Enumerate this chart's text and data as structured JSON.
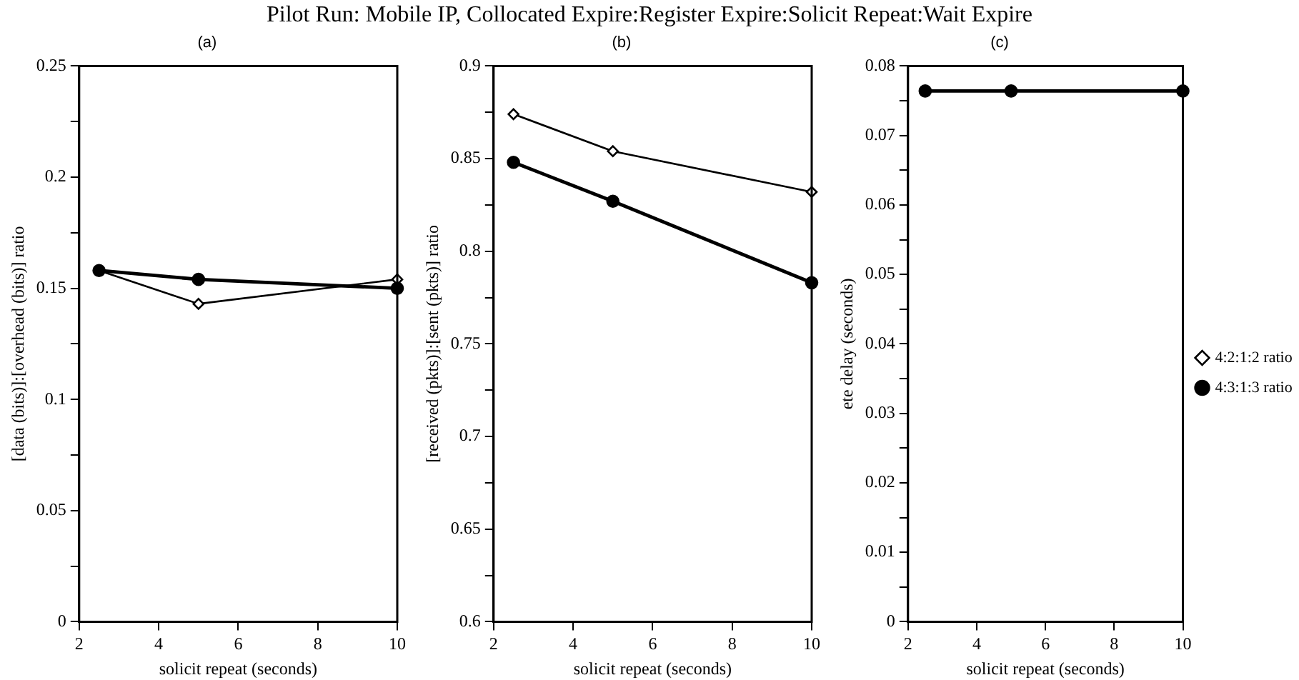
{
  "chart_data": [
    {
      "type": "line",
      "title": "Pilot Run: Mobile IP, Collocated Expire:Register Expire:Solicit Repeat:Wait Expire",
      "subtitle": "(a)",
      "xlabel": "solicit repeat (seconds)",
      "ylabel": "[data (bits)]:[overhead (bits)] ratio",
      "x": [
        2.5,
        5,
        10
      ],
      "series": [
        {
          "color": "#000000",
          "marker": "diamond",
          "values": [
            0.158,
            0.143,
            0.154
          ]
        },
        {
          "color": "#000000",
          "marker": "circle",
          "values": [
            0.158,
            0.154,
            0.15
          ]
        }
      ],
      "xlim": [
        2,
        10
      ],
      "xticks": [
        2,
        4,
        6,
        8,
        10
      ],
      "ylim": [
        0,
        0.25
      ],
      "yticks": [
        0,
        {
          "value": 0.025,
          "label": null
        },
        0.05,
        {
          "value": 0.075,
          "label": null
        },
        0.1,
        {
          "value": 0.125,
          "label": null
        },
        0.15,
        {
          "value": 0.175,
          "label": null
        },
        0.2,
        {
          "value": 0.225,
          "label": null
        },
        0.25
      ],
      "grid": false,
      "legend": false
    },
    {
      "type": "line",
      "subtitle": "(b)",
      "xlabel": "solicit repeat (seconds)",
      "ylabel": "[received (pkts)]:[sent (pkts)] ratio",
      "x": [
        2.5,
        5,
        10
      ],
      "series": [
        {
          "color": "#000000",
          "marker": "diamond",
          "values": [
            0.874,
            0.854,
            0.832
          ]
        },
        {
          "color": "#000000",
          "marker": "circle",
          "values": [
            0.848,
            0.827,
            0.783
          ]
        }
      ],
      "xlim": [
        2,
        10
      ],
      "xticks": [
        2,
        4,
        6,
        8,
        10
      ],
      "ylim": [
        0.6,
        0.9
      ],
      "yticks": [
        0.6,
        {
          "value": 0.625,
          "label": null
        },
        0.65,
        {
          "value": 0.675,
          "label": null
        },
        0.7,
        {
          "value": 0.725,
          "label": null
        },
        0.75,
        {
          "value": 0.775,
          "label": null
        },
        0.8,
        {
          "value": 0.825,
          "label": null
        },
        0.85,
        {
          "value": 0.875,
          "label": null
        },
        0.9
      ],
      "grid": false,
      "legend": false
    },
    {
      "type": "line",
      "subtitle": "(c)",
      "xlabel": "solicit repeat (seconds)",
      "ylabel": "ete delay (seconds)",
      "x": [
        2.5,
        5,
        10
      ],
      "series": [
        {
          "name": "4:2:1:2 ratio",
          "color": "#000000",
          "marker": "diamond",
          "values": [
            null,
            null,
            null
          ]
        },
        {
          "name": "4:3:1:3 ratio",
          "color": "#000000",
          "marker": "circle",
          "values": [
            0.0764,
            0.0764,
            0.0764
          ]
        }
      ],
      "xlim": [
        2,
        10
      ],
      "xticks": [
        2,
        4,
        6,
        8,
        10
      ],
      "ylim": [
        0,
        0.08
      ],
      "yticks": [
        0,
        {
          "value": 0.005,
          "label": null
        },
        0.01,
        {
          "value": 0.015,
          "label": null
        },
        0.02,
        {
          "value": 0.025,
          "label": null
        },
        0.03,
        {
          "value": 0.035,
          "label": null
        },
        0.04,
        {
          "value": 0.045,
          "label": null
        },
        0.05,
        {
          "value": 0.055,
          "label": null
        },
        0.06,
        {
          "value": 0.065,
          "label": null
        },
        0.07,
        {
          "value": 0.075,
          "label": null
        },
        0.08
      ],
      "grid": false,
      "legend": "right"
    }
  ]
}
